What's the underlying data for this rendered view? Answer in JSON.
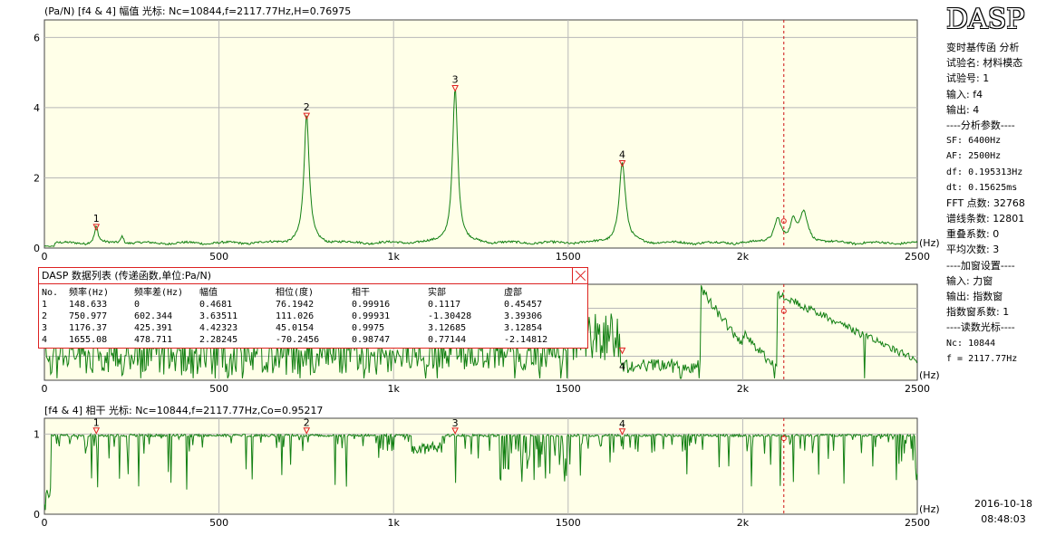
{
  "panel1": {
    "header": "(Pa/N)  [f4 & 4]  幅值   光标: Nc=10844,f=2117.77Hz,H=0.76975",
    "x_unit": "(Hz)"
  },
  "panel2": {
    "x_unit": "(Hz)"
  },
  "panel3": {
    "header": "[f4 & 4]  相干   光标: Nc=10844,f=2117.77Hz,Co=0.95217",
    "x_unit": "(Hz)"
  },
  "chart_data": [
    {
      "type": "line",
      "name": "amplitude",
      "xlim": [
        0,
        2500
      ],
      "ylim": [
        0,
        6.5
      ],
      "x_ticks": [
        0,
        500,
        1000,
        1500,
        2000,
        2500
      ],
      "x_tick_labels": [
        "0",
        "500",
        "1k",
        "1500",
        "2k",
        "2500"
      ],
      "y_ticks": [
        0,
        2,
        4,
        6
      ],
      "y_tick_labels": [
        "0",
        "2",
        "4",
        "6"
      ],
      "grid": true,
      "cursor_x": 2117.77,
      "peaks": [
        {
          "label": "1",
          "x": 148.633,
          "y": 0.4681
        },
        {
          "label": "2",
          "x": 750.977,
          "y": 3.63511
        },
        {
          "label": "3",
          "x": 1176.37,
          "y": 4.42323
        },
        {
          "label": "4",
          "x": 1655.08,
          "y": 2.28245
        }
      ],
      "extra_peaks": [
        {
          "x": 223,
          "y": 0.22,
          "w": 5
        },
        {
          "x": 2100,
          "y": 0.7,
          "w": 12
        },
        {
          "x": 2175,
          "y": 0.85,
          "w": 14
        },
        {
          "x": 2145,
          "y": 0.55,
          "w": 10
        }
      ],
      "baseline": 0.12
    },
    {
      "type": "line",
      "name": "phase",
      "xlim": [
        0,
        2500
      ],
      "x_ticks": [
        0,
        500,
        1000,
        1500,
        2000,
        2500
      ],
      "x_tick_labels": [
        "0",
        "500",
        "1k",
        "1500",
        "2k",
        "2500"
      ],
      "grid": true,
      "cursor_x": 2117.77,
      "peaks": [
        {
          "label": "4",
          "x": 1655.08,
          "y": -70.2456
        }
      ]
    },
    {
      "type": "line",
      "name": "coherence",
      "xlim": [
        0,
        2500
      ],
      "ylim": [
        0,
        1.2
      ],
      "x_ticks": [
        0,
        500,
        1000,
        1500,
        2000,
        2500
      ],
      "x_tick_labels": [
        "0",
        "500",
        "1k",
        "1500",
        "2k",
        "2500"
      ],
      "y_ticks": [
        0,
        1
      ],
      "y_tick_labels": [
        "0",
        "1"
      ],
      "grid": true,
      "cursor_x": 2117.77,
      "peaks": [
        {
          "label": "1",
          "x": 148.633,
          "y": 0.99916
        },
        {
          "label": "2",
          "x": 750.977,
          "y": 0.99931
        },
        {
          "label": "3",
          "x": 1176.37,
          "y": 0.9975
        },
        {
          "label": "4",
          "x": 1655.08,
          "y": 0.98747
        }
      ]
    }
  ],
  "table": {
    "title": "DASP 数据列表 (传递函数,单位:Pa/N)",
    "headers": [
      "No.",
      "频率(Hz)",
      "频率差(Hz)",
      "幅值",
      "相位(度)",
      "相干",
      "实部",
      "虚部"
    ],
    "rows": [
      [
        "1",
        "148.633",
        "0",
        "0.4681",
        "76.1942",
        "0.99916",
        "0.1117",
        "0.45457"
      ],
      [
        "2",
        "750.977",
        "602.344",
        "3.63511",
        "111.026",
        "0.99931",
        "-1.30428",
        "3.39306"
      ],
      [
        "3",
        "1176.37",
        "425.391",
        "4.42323",
        "45.0154",
        "0.9975",
        "3.12685",
        "3.12854"
      ],
      [
        "4",
        "1655.08",
        "478.711",
        "2.28245",
        "-70.2456",
        "0.98747",
        "0.77144",
        "-2.14812"
      ]
    ]
  },
  "sidebar": {
    "logo": "DASP",
    "lines": [
      "变时基传函 分析",
      "试验名: 材料模态",
      "试验号: 1",
      "输入: f4",
      "输出: 4",
      "----分析参数----",
      "SF: 6400Hz",
      "AF: 2500Hz",
      "df: 0.195313Hz",
      "dt: 0.15625ms",
      "FFT 点数: 32768",
      "谱线条数: 12801",
      "重叠系数: 0",
      "平均次数: 3",
      "----加窗设置----",
      "输入: 力窗",
      "输出: 指数窗",
      "指数窗系数: 1",
      "----读数光标----",
      "Nc: 10844",
      "f = 2117.77Hz"
    ],
    "date": "2016-10-18",
    "time": "08:48:03"
  },
  "colors": {
    "plot_bg": "#ffffe8",
    "grid": "#b8b8b8",
    "trace": "#138013",
    "marker": "#e02020",
    "cursor": "#cc1111"
  }
}
